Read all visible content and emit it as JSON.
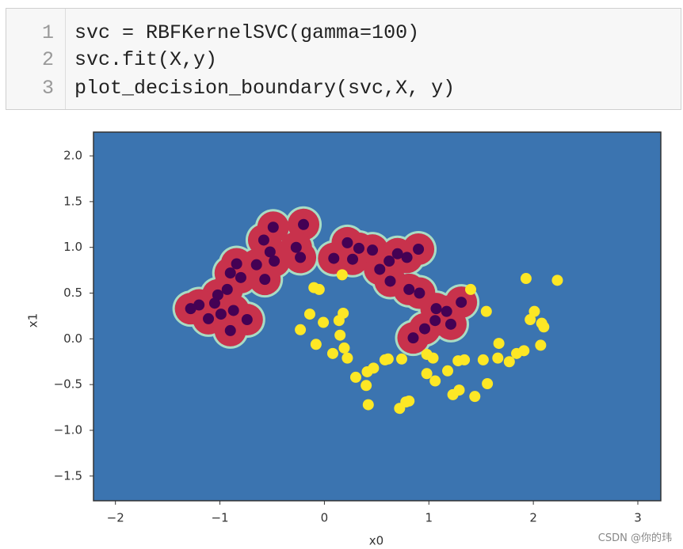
{
  "code": {
    "line_numbers": [
      1,
      2,
      3
    ],
    "lines": [
      "svc = RBFKernelSVC(gamma=100)",
      "svc.fit(X,y)",
      "plot_decision_boundary(svc,X, y)"
    ]
  },
  "watermark": "CSDN @你的玮",
  "chart_data": {
    "type": "scatter",
    "x_label": "x0",
    "y_label": "x1",
    "background": "#3b74b0",
    "region_color": "#c8324c",
    "xlim": [
      -2.21,
      3.22
    ],
    "ylim": [
      -1.77,
      2.26
    ],
    "xticks": [
      {
        "value": -2,
        "label": "−2"
      },
      {
        "value": -1,
        "label": "−1"
      },
      0,
      1,
      2,
      3
    ],
    "yticks": [
      {
        "value": -1.5,
        "label": "−1.5"
      },
      {
        "value": -1,
        "label": "−1.0"
      },
      {
        "value": -0.5,
        "label": "−0.5"
      },
      {
        "value": 0,
        "label": "0.0"
      },
      {
        "value": 0.5,
        "label": "0.5"
      },
      {
        "value": 1,
        "label": "1.0"
      },
      {
        "value": 1.5,
        "label": "1.5"
      },
      {
        "value": 2,
        "label": "2.0"
      }
    ],
    "series": [
      {
        "color": "#440154",
        "x": [
          -0.2,
          -0.49,
          -0.58,
          -0.52,
          -0.27,
          -0.23,
          -0.48,
          -0.65,
          -0.84,
          -0.9,
          -0.8,
          -0.57,
          -0.93,
          -1.02,
          -1.05,
          -1.2,
          -1.28,
          -0.87,
          -1.11,
          -0.99,
          -0.74,
          -0.9,
          0.22,
          0.09,
          0.27,
          0.46,
          0.62,
          0.79,
          0.9,
          0.53,
          0.63,
          0.81,
          0.91,
          1.07,
          1.17,
          1.31,
          1.06,
          1.21,
          0.85,
          0.96,
          0.33,
          0.7
        ],
        "values": [
          1.25,
          1.22,
          1.08,
          0.95,
          1.0,
          0.89,
          0.85,
          0.81,
          0.82,
          0.72,
          0.67,
          0.65,
          0.54,
          0.48,
          0.39,
          0.37,
          0.33,
          0.31,
          0.22,
          0.27,
          0.21,
          0.09,
          1.05,
          0.88,
          0.87,
          0.97,
          0.85,
          0.89,
          0.98,
          0.76,
          0.63,
          0.54,
          0.5,
          0.33,
          0.3,
          0.4,
          0.2,
          0.16,
          0.01,
          0.11,
          0.99,
          0.93
        ]
      },
      {
        "color": "#fde725",
        "x": [
          0.17,
          -0.1,
          -0.05,
          1.4,
          1.93,
          2.23,
          -0.14,
          -0.23,
          -0.01,
          0.18,
          0.14,
          1.55,
          2.01,
          1.97,
          2.08,
          2.1,
          -0.08,
          0.15,
          0.19,
          0.08,
          0.22,
          1.67,
          2.07,
          1.91,
          1.84,
          1.66,
          1.77,
          1.52,
          0.98,
          1.04,
          1.34,
          1.28,
          1.18,
          0.58,
          0.61,
          0.74,
          0.47,
          0.41,
          0.3,
          0.98,
          1.06,
          0.4,
          1.56,
          1.29,
          1.23,
          1.44,
          0.42,
          0.72,
          0.78,
          0.81
        ],
        "values": [
          0.7,
          0.56,
          0.54,
          0.54,
          0.66,
          0.64,
          0.27,
          0.1,
          0.18,
          0.28,
          0.2,
          0.3,
          0.3,
          0.21,
          0.17,
          0.13,
          -0.06,
          0.04,
          -0.1,
          -0.16,
          -0.21,
          -0.05,
          -0.07,
          -0.13,
          -0.16,
          -0.21,
          -0.25,
          -0.23,
          -0.17,
          -0.21,
          -0.23,
          -0.24,
          -0.35,
          -0.23,
          -0.22,
          -0.22,
          -0.32,
          -0.36,
          -0.42,
          -0.38,
          -0.46,
          -0.51,
          -0.49,
          -0.56,
          -0.61,
          -0.63,
          -0.72,
          -0.76,
          -0.69,
          -0.68
        ]
      }
    ]
  }
}
